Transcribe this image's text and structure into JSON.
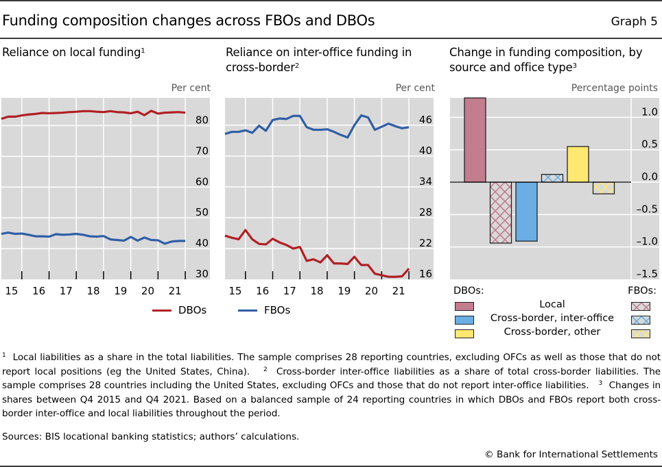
{
  "header": {
    "title": "Funding composition changes across FBOs and DBOs",
    "graph_number": "Graph 5"
  },
  "colors": {
    "dbo_line": "#b11f24",
    "fbo_line": "#2f5ea6",
    "plot_bg": "#d9d9d9",
    "local": "#c27d8e",
    "inter_office": "#6aaee3",
    "other": "#ffe872"
  },
  "chart_data": [
    {
      "type": "line",
      "title": "Reliance on local funding",
      "footnote_ref": "1",
      "unit_label": "Per cent",
      "x_ticks": [
        "15",
        "16",
        "17",
        "18",
        "19",
        "20",
        "21"
      ],
      "x_range": [
        2015.0,
        2022.0
      ],
      "ylim": [
        30,
        89
      ],
      "y_ticks": [
        30,
        40,
        50,
        60,
        70,
        80
      ],
      "y_axis_side": "right",
      "grid": true,
      "frequency": "quarterly",
      "x": [
        2015.25,
        2015.5,
        2015.75,
        2016.0,
        2016.25,
        2016.5,
        2016.75,
        2017.0,
        2017.25,
        2017.5,
        2017.75,
        2018.0,
        2018.25,
        2018.5,
        2018.75,
        2019.0,
        2019.25,
        2019.5,
        2019.75,
        2020.0,
        2020.25,
        2020.5,
        2020.75,
        2021.0,
        2021.25,
        2021.5,
        2021.75,
        2022.0
      ],
      "series": [
        {
          "name": "DBOs",
          "values": [
            82.2,
            82.9,
            82.9,
            83.3,
            83.6,
            83.8,
            84.1,
            84.0,
            84.1,
            84.2,
            84.4,
            84.5,
            84.7,
            84.7,
            84.5,
            84.4,
            84.7,
            84.4,
            84.3,
            84.0,
            84.5,
            83.4,
            84.8,
            83.9,
            84.2,
            84.3,
            84.4,
            84.2
          ]
        },
        {
          "name": "FBOs",
          "values": [
            44.8,
            45.2,
            44.8,
            44.9,
            44.5,
            44.0,
            44.0,
            43.9,
            44.7,
            44.5,
            44.6,
            44.8,
            44.5,
            44.0,
            43.9,
            44.1,
            43.0,
            42.8,
            42.6,
            43.8,
            42.6,
            43.6,
            42.8,
            42.7,
            41.6,
            42.3,
            42.5,
            42.5
          ]
        }
      ],
      "legend": [
        "DBOs"
      ]
    },
    {
      "type": "line",
      "title": "Reliance on inter-office funding in cross-border",
      "footnote_ref": "2",
      "unit_label": "Per cent",
      "x_ticks": [
        "15",
        "16",
        "17",
        "18",
        "19",
        "20",
        "21"
      ],
      "x_range": [
        2015.0,
        2022.0
      ],
      "ylim": [
        16,
        51.3
      ],
      "y_ticks": [
        16,
        22,
        28,
        34,
        40,
        46
      ],
      "y_axis_side": "right",
      "grid": true,
      "frequency": "quarterly",
      "x": [
        2015.25,
        2015.5,
        2015.75,
        2016.0,
        2016.25,
        2016.5,
        2016.75,
        2017.0,
        2017.25,
        2017.5,
        2017.75,
        2018.0,
        2018.25,
        2018.5,
        2018.75,
        2019.0,
        2019.25,
        2019.5,
        2019.75,
        2020.0,
        2020.25,
        2020.5,
        2020.75,
        2021.0,
        2021.25,
        2021.5,
        2021.75,
        2022.0
      ],
      "series": [
        {
          "name": "FBOs",
          "values": [
            44.3,
            44.7,
            44.7,
            45.0,
            44.5,
            45.9,
            44.9,
            47.0,
            47.3,
            47.2,
            47.8,
            47.8,
            45.6,
            45.1,
            45.1,
            45.2,
            44.7,
            44.1,
            43.6,
            46.0,
            47.9,
            47.5,
            45.1,
            45.7,
            46.3,
            45.8,
            45.4,
            45.6
          ]
        },
        {
          "name": "DBOs",
          "values": [
            24.5,
            24.1,
            23.8,
            25.6,
            23.8,
            22.9,
            22.8,
            23.9,
            23.2,
            22.7,
            22.0,
            22.3,
            19.6,
            19.9,
            19.3,
            20.7,
            19.1,
            19.1,
            19.0,
            20.4,
            18.8,
            18.8,
            17.1,
            16.8,
            16.5,
            16.5,
            16.6,
            18.1
          ]
        }
      ],
      "legend": [
        "FBOs"
      ]
    },
    {
      "type": "bar",
      "title": "Change in funding composition, by source and office type",
      "footnote_ref": "3",
      "unit_label": "Percentage points",
      "categories": [
        "Local",
        "Cross-border, inter-office",
        "Cross-border, other"
      ],
      "series": [
        {
          "name": "DBOs",
          "fill": "solid",
          "values": [
            1.3,
            -0.91,
            0.55
          ]
        },
        {
          "name": "FBOs",
          "fill": "hatched",
          "values": [
            -0.94,
            0.12,
            -0.18
          ]
        }
      ],
      "ylim": [
        -1.5,
        1.3
      ],
      "y_ticks": [
        -1.5,
        -1.0,
        -0.5,
        0.0,
        0.5,
        1.0
      ],
      "y_tick_labels": [
        "–1.5",
        "–1.0",
        "–0.5",
        "0.0",
        "0.5",
        "1.0"
      ],
      "y_axis_side": "right",
      "grid": true,
      "legend": {
        "left_header": "DBOs:",
        "right_header": "FBOs:",
        "items": [
          "Local",
          "Cross-border, inter-office",
          "Cross-border, other"
        ]
      }
    }
  ],
  "notes": {
    "n1_mark": "1",
    "n1": "Local liabilities as a share in the total liabilities. The sample comprises 28 reporting countries, excluding OFCs as well as those that do not report local positions (eg the United States, China).",
    "n2_mark": "2",
    "n2": "Cross-border inter-office liabilities as a share of total cross-border liabilities. The sample comprises 28 countries including the United States, excluding OFCs and those that do not report inter-office liabilities.",
    "n3_mark": "3",
    "n3": "Changes in shares between Q4 2015 and Q4 2021. Based on a balanced sample of 24 reporting countries in which DBOs and FBOs report both cross-border inter-office and local liabilities throughout the period.",
    "sources": "Sources: BIS locational banking statistics; authors’ calculations.",
    "copyright": "© Bank for International Settlements"
  }
}
